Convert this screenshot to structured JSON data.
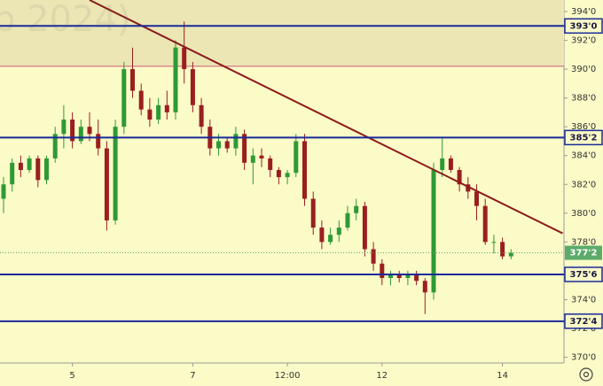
{
  "chart_data": {
    "type": "candlestick",
    "watermark": "p 2024)",
    "categories": [
      null,
      null,
      null,
      null,
      null,
      null,
      null,
      null,
      "5",
      null,
      null,
      null,
      null,
      null,
      null,
      null,
      null,
      null,
      null,
      null,
      null,
      null,
      "7",
      null,
      null,
      null,
      null,
      null,
      null,
      null,
      null,
      null,
      null,
      "12:00",
      null,
      null,
      null,
      null,
      null,
      null,
      null,
      null,
      null,
      null,
      "12",
      null,
      null,
      null,
      null,
      null,
      null,
      null,
      null,
      null,
      null,
      null,
      null,
      null,
      "14",
      null
    ],
    "open": [
      381,
      382,
      383.5,
      383,
      383.8,
      382.3,
      383.8,
      385.5,
      386.5,
      385,
      386,
      385.5,
      384.5,
      379.5,
      386,
      390,
      388.5,
      387.2,
      386.5,
      387.5,
      387,
      391.5,
      390,
      387.5,
      386,
      384.5,
      385,
      384.5,
      385.5,
      383.5,
      384,
      383.8,
      383,
      382.5,
      382.8,
      385,
      381,
      379,
      378,
      378.5,
      379,
      380,
      380.5,
      377.5,
      376.5,
      375.5,
      375.8,
      375.5,
      375.8,
      375.3,
      374.5,
      383,
      383.8,
      383,
      382,
      381.5,
      380.5,
      378,
      378,
      377
    ],
    "high": [
      382.5,
      383.8,
      384,
      384,
      384,
      384,
      386,
      387.5,
      387,
      386.5,
      387,
      386.5,
      385,
      386.5,
      390.5,
      391.5,
      389,
      388,
      388,
      388.5,
      392,
      393.3,
      390.5,
      388,
      386.5,
      385.5,
      385.3,
      386,
      385.8,
      384.5,
      384.5,
      384,
      383.2,
      383,
      385.5,
      385.5,
      381.5,
      379.5,
      379,
      379.5,
      380.5,
      381,
      380.8,
      378,
      376.8,
      376,
      376,
      376,
      376,
      375.5,
      383.5,
      385.2,
      384,
      383.2,
      382.5,
      382,
      381,
      378.5,
      378.3,
      377.5
    ],
    "low": [
      380,
      381.5,
      382.5,
      382.8,
      381.8,
      382,
      383.5,
      384.5,
      384.5,
      384.8,
      385,
      384,
      378.8,
      379.2,
      385.5,
      388,
      386.8,
      386,
      386.2,
      386.5,
      386.5,
      389,
      387,
      385.5,
      384,
      384,
      384.2,
      384,
      383,
      382,
      383.2,
      382.5,
      382,
      382,
      382.5,
      380.5,
      378.5,
      377.5,
      377.8,
      378,
      378.8,
      379.5,
      377,
      376,
      375,
      375,
      375.2,
      375,
      375,
      373,
      374,
      382.5,
      382.8,
      381.5,
      381,
      379.5,
      377.8,
      377.2,
      376.8,
      376.8
    ],
    "close": [
      382,
      383.5,
      383,
      383.8,
      382.3,
      383.8,
      385.5,
      386.5,
      385,
      386,
      385.5,
      384.5,
      379.5,
      386,
      390,
      388.5,
      387.2,
      386.5,
      387.5,
      387,
      391.5,
      390,
      387.5,
      386,
      384.5,
      385,
      384.5,
      385.5,
      383.5,
      384,
      383.8,
      383,
      382.5,
      382.8,
      385,
      381,
      379,
      378,
      378.5,
      379,
      380,
      380.5,
      377.5,
      376.5,
      375.5,
      375.8,
      375.5,
      375.8,
      375.3,
      374.5,
      383,
      383.8,
      383,
      382,
      381.5,
      380.5,
      378,
      378,
      377,
      377.25
    ],
    "up_color": "#2e9a35",
    "down_color": "#9a1f1f",
    "ylim": [
      369.6,
      394.8
    ],
    "yticks": [
      {
        "value": 370,
        "label": "370'0"
      },
      {
        "value": 372,
        "label": "372'0"
      },
      {
        "value": 374,
        "label": "374'0"
      },
      {
        "value": 378,
        "label": "378'0"
      },
      {
        "value": 380,
        "label": "380'0"
      },
      {
        "value": 382,
        "label": "382'0"
      },
      {
        "value": 384,
        "label": "384'0"
      },
      {
        "value": 386,
        "label": "386'0"
      },
      {
        "value": 388,
        "label": "388'0"
      },
      {
        "value": 390,
        "label": "390'0"
      },
      {
        "value": 392,
        "label": "392'0"
      },
      {
        "value": 394,
        "label": "394'0"
      }
    ],
    "levels": [
      {
        "value": 393,
        "label": "393'0"
      },
      {
        "value": 385.25,
        "label": "385'2"
      },
      {
        "value": 375.75,
        "label": "375'6"
      },
      {
        "value": 372.5,
        "label": "372'4"
      }
    ],
    "level_color": "#1a2a9a",
    "current": {
      "value": 377.25,
      "label": "377'2"
    },
    "current_color": "#5cab6a",
    "zone": {
      "range": [
        390.2,
        394.8
      ],
      "color": "#ebe6b4",
      "edge_color": "#d05a7a"
    },
    "trendline": {
      "x": [
        10,
        65
      ],
      "y": [
        394.8,
        378.6
      ],
      "color": "#8b1a1a"
    }
  }
}
